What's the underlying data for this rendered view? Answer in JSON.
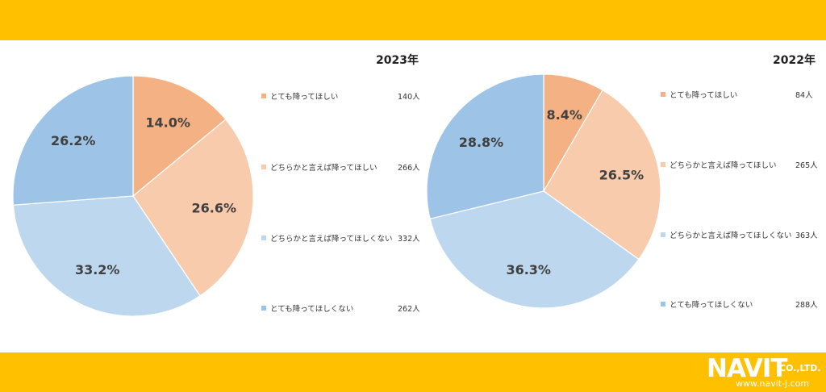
{
  "colors": {
    "band": "#ffc000",
    "s1": "#f4b183",
    "s2": "#f8cbad",
    "s3": "#bdd7ee",
    "s4": "#9dc3e6",
    "label": "#404040"
  },
  "logo": {
    "wordmark": "NAVIT",
    "suffix": "CO.,LTD.",
    "url": "www.navit-j.com"
  },
  "chart_data": [
    {
      "type": "pie",
      "title": "2023年",
      "legend_position": "right",
      "slices": [
        {
          "label": "とても降ってほしい",
          "count": "140人",
          "value": 14.0,
          "pct_label": "14.0%"
        },
        {
          "label": "どちらかと言えば降ってほしい",
          "count": "266人",
          "value": 26.6,
          "pct_label": "26.6%"
        },
        {
          "label": "どちらかと言えば降ってほしくない",
          "count": "332人",
          "value": 33.2,
          "pct_label": "33.2%"
        },
        {
          "label": "とても降ってほしくない",
          "count": "262人",
          "value": 26.2,
          "pct_label": "26.2%"
        }
      ]
    },
    {
      "type": "pie",
      "title": "2022年",
      "legend_position": "right",
      "slices": [
        {
          "label": "とても降ってほしい",
          "count": "84人",
          "value": 8.4,
          "pct_label": "8.4%"
        },
        {
          "label": "どちらかと言えば降ってほしい",
          "count": "265人",
          "value": 26.5,
          "pct_label": "26.5%"
        },
        {
          "label": "どちらかと言えば降ってほしくない",
          "count": "363人",
          "value": 36.3,
          "pct_label": "36.3%"
        },
        {
          "label": "とても降ってほしくない",
          "count": "288人",
          "value": 28.8,
          "pct_label": "28.8%"
        }
      ]
    }
  ]
}
